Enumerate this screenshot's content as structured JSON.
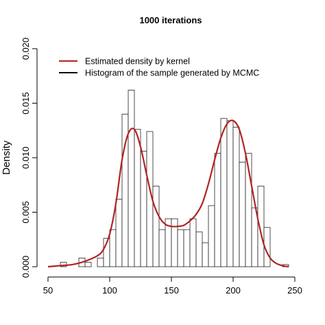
{
  "chart_data": {
    "type": "histogram",
    "title": "1000 iterations",
    "xlabel": "",
    "ylabel": "Density",
    "xlim": [
      50,
      250
    ],
    "ylim": [
      0,
      0.02
    ],
    "x_ticks": [
      {
        "value": 50,
        "label": "50"
      },
      {
        "value": 100,
        "label": "100"
      },
      {
        "value": 150,
        "label": "150"
      },
      {
        "value": 200,
        "label": "200"
      },
      {
        "value": 250,
        "label": "250"
      }
    ],
    "y_ticks": [
      {
        "value": 0.0,
        "label": "0.000"
      },
      {
        "value": 0.005,
        "label": "0.005"
      },
      {
        "value": 0.01,
        "label": "0.010"
      },
      {
        "value": 0.015,
        "label": "0.015"
      },
      {
        "value": 0.02,
        "label": "0.020"
      }
    ],
    "grid": false,
    "legend_position": "top-left",
    "legend": [
      {
        "label": "Estimated density by kernel",
        "color": "#b22222"
      },
      {
        "label": "Histogram of the sample generated by MCMC",
        "color": "#000000"
      }
    ],
    "bin_width": 5,
    "bins": [
      {
        "x0": 60,
        "density": 0.0004
      },
      {
        "x0": 65,
        "density": 0.0
      },
      {
        "x0": 70,
        "density": 0.0
      },
      {
        "x0": 75,
        "density": 0.0008
      },
      {
        "x0": 80,
        "density": 0.0004
      },
      {
        "x0": 85,
        "density": 0.0
      },
      {
        "x0": 90,
        "density": 0.0008
      },
      {
        "x0": 95,
        "density": 0.0026
      },
      {
        "x0": 100,
        "density": 0.0034
      },
      {
        "x0": 105,
        "density": 0.0062
      },
      {
        "x0": 110,
        "density": 0.014
      },
      {
        "x0": 115,
        "density": 0.0162
      },
      {
        "x0": 120,
        "density": 0.0126
      },
      {
        "x0": 125,
        "density": 0.0106
      },
      {
        "x0": 130,
        "density": 0.0124
      },
      {
        "x0": 135,
        "density": 0.0074
      },
      {
        "x0": 140,
        "density": 0.0034
      },
      {
        "x0": 145,
        "density": 0.0044
      },
      {
        "x0": 150,
        "density": 0.0044
      },
      {
        "x0": 155,
        "density": 0.0034
      },
      {
        "x0": 160,
        "density": 0.0034
      },
      {
        "x0": 165,
        "density": 0.0044
      },
      {
        "x0": 170,
        "density": 0.0032
      },
      {
        "x0": 175,
        "density": 0.0022
      },
      {
        "x0": 180,
        "density": 0.0056
      },
      {
        "x0": 185,
        "density": 0.0104
      },
      {
        "x0": 190,
        "density": 0.0136
      },
      {
        "x0": 195,
        "density": 0.0134
      },
      {
        "x0": 200,
        "density": 0.0128
      },
      {
        "x0": 205,
        "density": 0.0096
      },
      {
        "x0": 210,
        "density": 0.0104
      },
      {
        "x0": 215,
        "density": 0.0054
      },
      {
        "x0": 220,
        "density": 0.0074
      },
      {
        "x0": 225,
        "density": 0.0036
      },
      {
        "x0": 230,
        "density": 0.0
      },
      {
        "x0": 235,
        "density": 0.0
      },
      {
        "x0": 240,
        "density": 0.0002
      }
    ],
    "kernel_density": {
      "color": "#b22222",
      "x": [
        50,
        60,
        70,
        80,
        90,
        95,
        100,
        105,
        110,
        115,
        120,
        125,
        130,
        135,
        140,
        145,
        150,
        155,
        160,
        165,
        170,
        175,
        180,
        185,
        190,
        195,
        200,
        205,
        210,
        215,
        220,
        225,
        230,
        235,
        240,
        245
      ],
      "y": [
        0.0,
        0.0001,
        0.0002,
        0.0005,
        0.001,
        0.0016,
        0.003,
        0.0058,
        0.0098,
        0.0122,
        0.0126,
        0.011,
        0.0084,
        0.006,
        0.0046,
        0.0039,
        0.0037,
        0.0037,
        0.0038,
        0.0042,
        0.0048,
        0.0058,
        0.0076,
        0.0098,
        0.0118,
        0.0131,
        0.0134,
        0.0126,
        0.0104,
        0.0074,
        0.0044,
        0.002,
        0.0008,
        0.0003,
        0.0001,
        0.0
      ]
    }
  }
}
